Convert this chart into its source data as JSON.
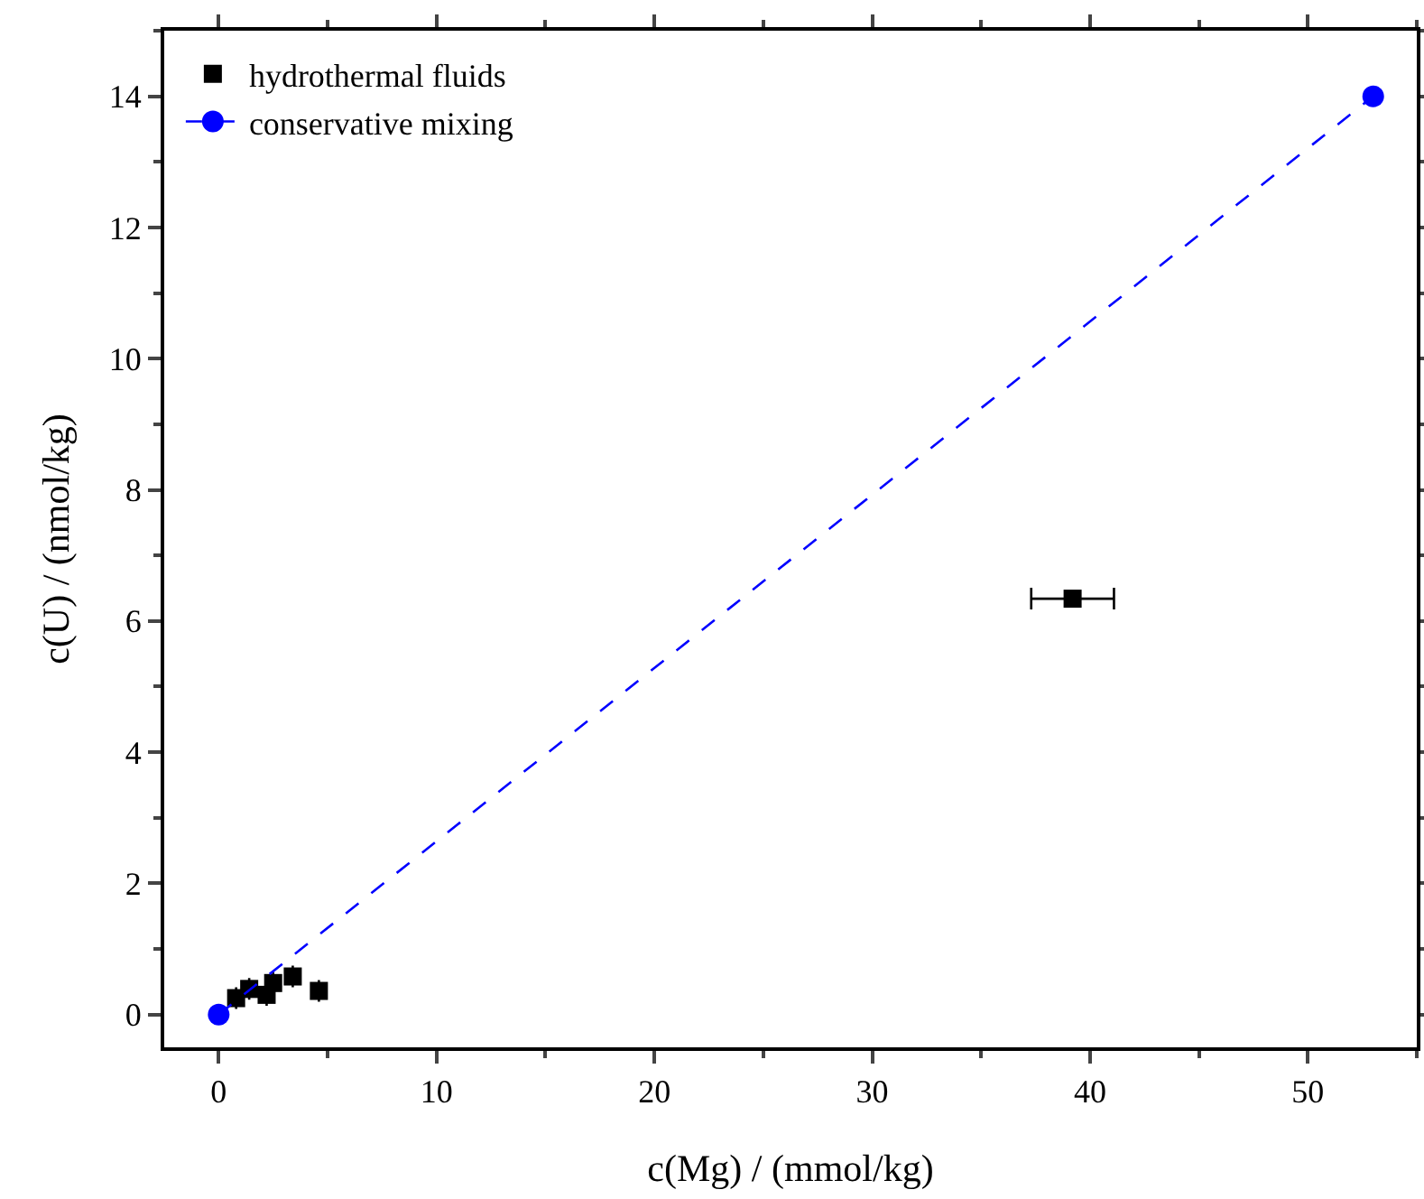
{
  "chart_data": {
    "type": "scatter",
    "xlabel": "c(Mg) / (mmol/kg)",
    "ylabel": "c(U) / (nmol/kg)",
    "xlim": [
      -2.5,
      55
    ],
    "xticks": [
      0,
      10,
      20,
      30,
      40,
      50
    ],
    "ylim": [
      -0.5,
      15
    ],
    "yticks": [
      0,
      2,
      4,
      6,
      8,
      10,
      12,
      14
    ],
    "legend": "top left",
    "grid": false,
    "series": [
      {
        "name": "hydrothermal fluids",
        "color": "#000000",
        "marker": "square",
        "x": [
          0.8,
          1.4,
          2.2,
          2.5,
          3.4,
          4.6,
          39.2
        ],
        "values": [
          0.25,
          0.39,
          0.3,
          0.48,
          0.58,
          0.36,
          6.34
        ],
        "xerrors": [
          null,
          null,
          null,
          null,
          null,
          null,
          1.9
        ]
      },
      {
        "name": "conservative mixing",
        "type": "line",
        "color": "#0000ff",
        "marker": "circle",
        "line_style": "dashed",
        "x": [
          0,
          53
        ],
        "values": [
          0,
          14
        ]
      }
    ]
  }
}
